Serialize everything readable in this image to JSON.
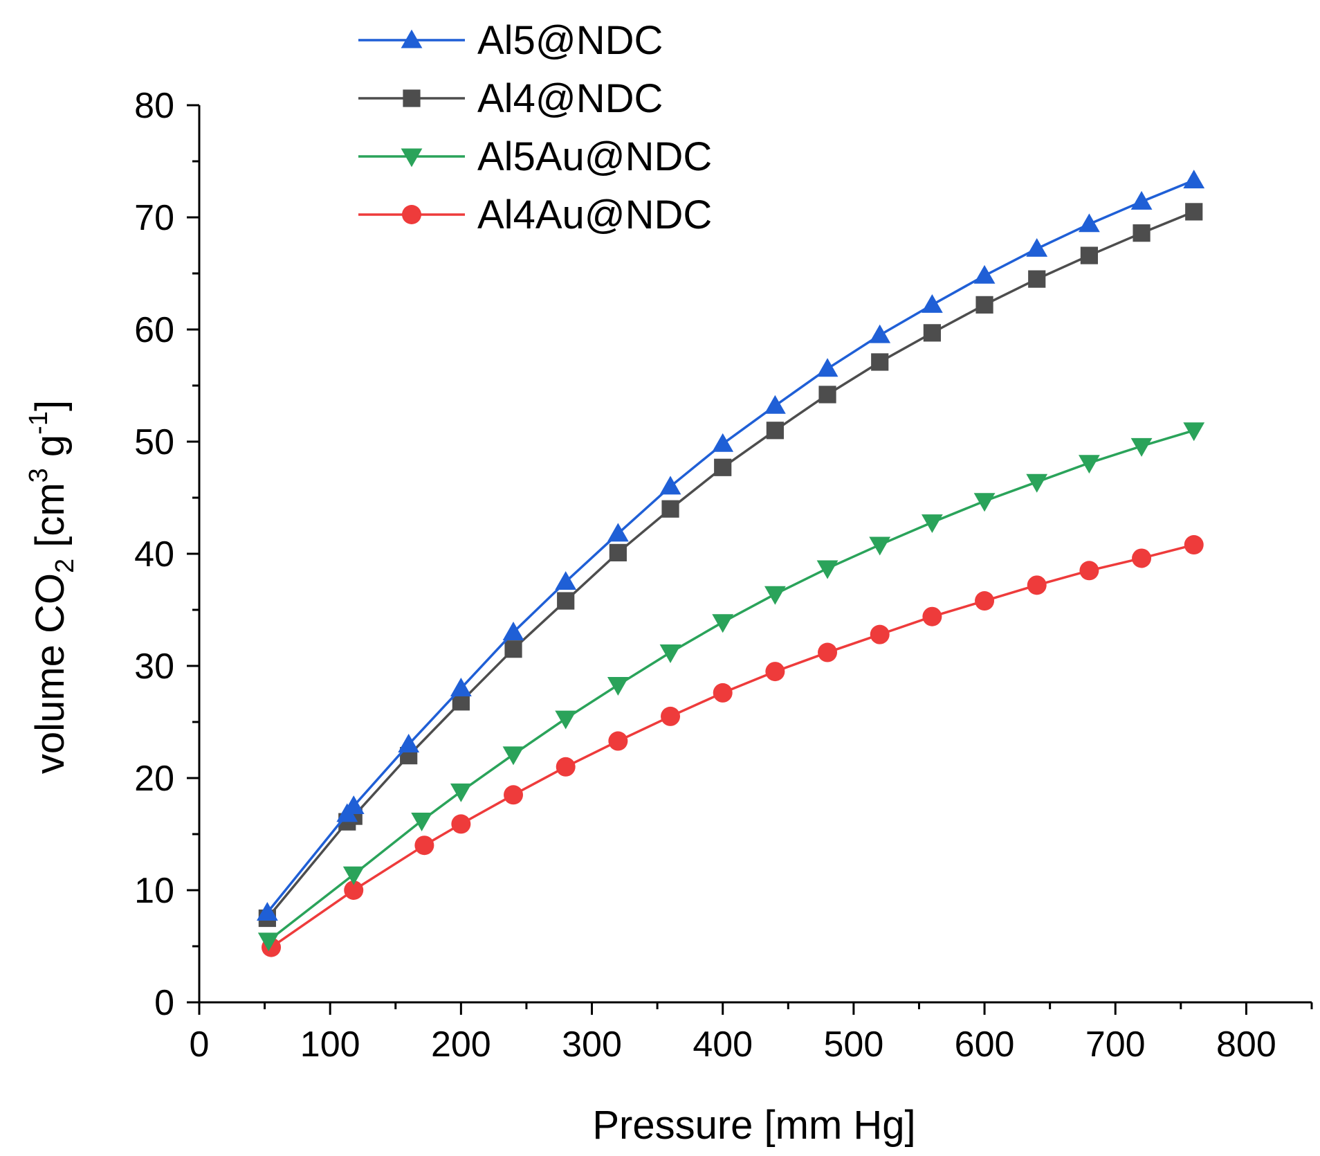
{
  "chart_data": {
    "type": "line",
    "xlabel": "Pressure [mm Hg]",
    "ylabel": {
      "prefix": "volume CO",
      "sub": "2",
      "mid": " [cm",
      "sup1": "3",
      "mid2": " g",
      "sup2": "-1",
      "suffix": "]"
    },
    "xlim": [
      0,
      850
    ],
    "ylim": [
      0,
      80
    ],
    "xticks": [
      0,
      100,
      200,
      300,
      400,
      500,
      600,
      700,
      800
    ],
    "yticks": [
      0,
      10,
      20,
      30,
      40,
      50,
      60,
      70,
      80
    ],
    "grid": false,
    "legend_position": "top-center",
    "series": [
      {
        "name": "Al5@NDC",
        "color": "#1f5fd6",
        "marker": "triangle-up",
        "x": [
          52,
          113,
          118,
          160,
          200,
          240,
          280,
          320,
          360,
          400,
          440,
          480,
          520,
          560,
          600,
          640,
          680,
          720,
          760
        ],
        "y": [
          8.0,
          16.8,
          17.5,
          23.0,
          28.0,
          33.0,
          37.5,
          41.8,
          46.0,
          49.8,
          53.2,
          56.5,
          59.5,
          62.2,
          64.8,
          67.2,
          69.4,
          71.4,
          73.3
        ]
      },
      {
        "name": "Al4@NDC",
        "color": "#4d4d4d",
        "marker": "square",
        "x": [
          52,
          113,
          118,
          160,
          200,
          240,
          280,
          320,
          360,
          400,
          440,
          480,
          520,
          560,
          600,
          640,
          680,
          720,
          760
        ],
        "y": [
          7.5,
          16.1,
          16.6,
          22.0,
          26.8,
          31.5,
          35.8,
          40.1,
          44.0,
          47.7,
          51.0,
          54.2,
          57.1,
          59.7,
          62.2,
          64.5,
          66.6,
          68.6,
          70.5
        ]
      },
      {
        "name": "Al5Au@NDC",
        "color": "#2aa35a",
        "marker": "triangle-down",
        "x": [
          53,
          118,
          170,
          200,
          240,
          280,
          320,
          360,
          400,
          440,
          480,
          520,
          560,
          600,
          640,
          680,
          720,
          760
        ],
        "y": [
          5.5,
          11.4,
          16.2,
          18.8,
          22.1,
          25.3,
          28.3,
          31.2,
          33.9,
          36.4,
          38.7,
          40.8,
          42.8,
          44.7,
          46.4,
          48.1,
          49.6,
          51.0
        ]
      },
      {
        "name": "Al4Au@NDC",
        "color": "#ee3b3b",
        "marker": "circle",
        "x": [
          55,
          118,
          172,
          200,
          240,
          280,
          320,
          360,
          400,
          440,
          480,
          520,
          560,
          600,
          640,
          680,
          720,
          760
        ],
        "y": [
          4.9,
          10.0,
          14.0,
          15.9,
          18.5,
          21.0,
          23.3,
          25.5,
          27.6,
          29.5,
          31.2,
          32.8,
          34.4,
          35.8,
          37.2,
          38.5,
          39.6,
          40.8
        ]
      }
    ]
  }
}
